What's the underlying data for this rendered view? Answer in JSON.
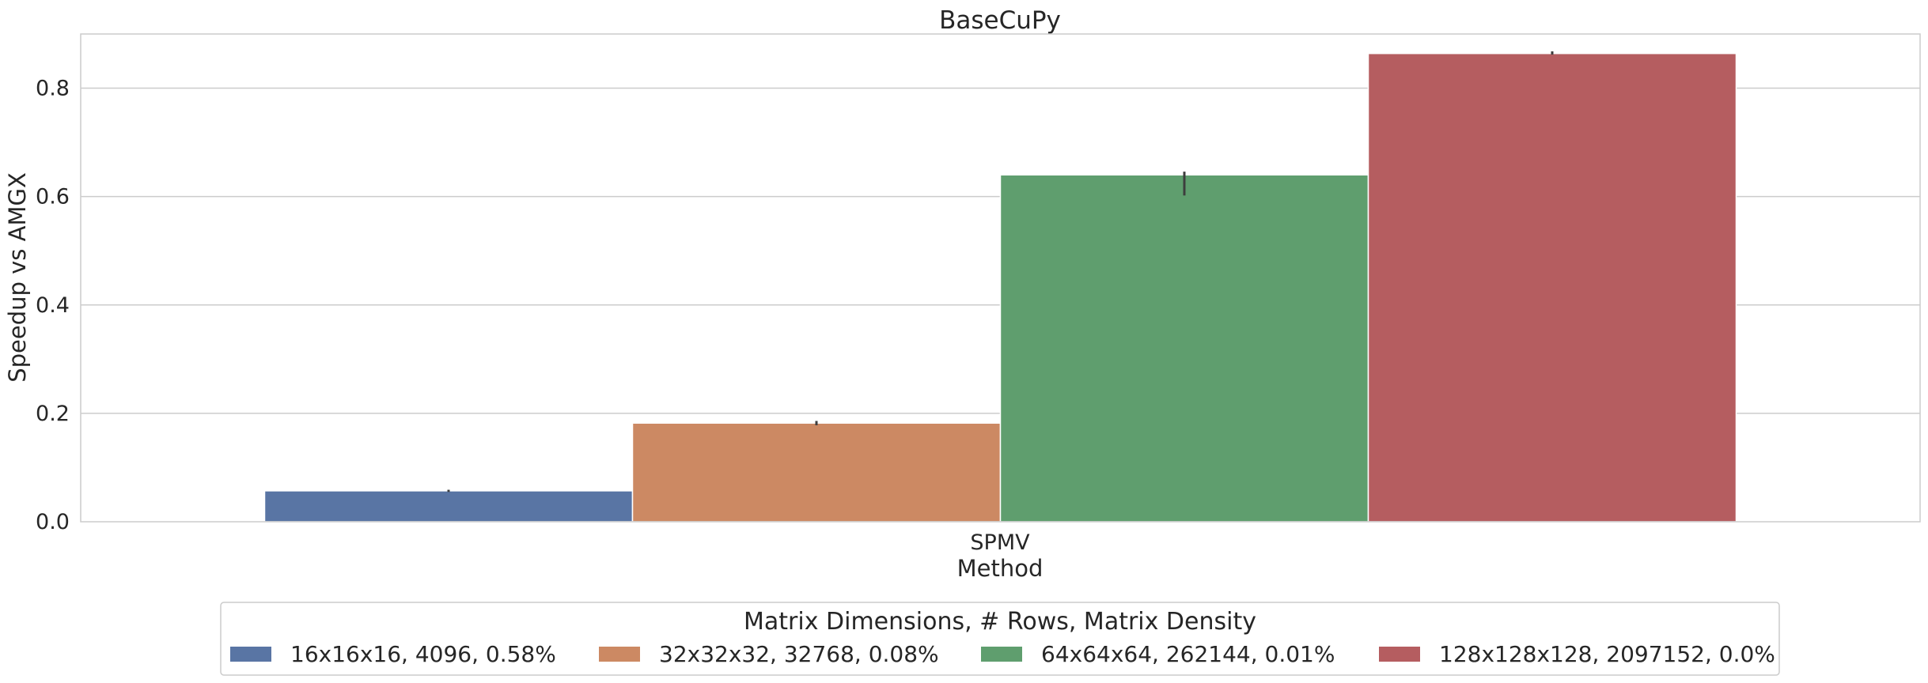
{
  "chart_data": {
    "type": "bar",
    "title": "BaseCuPy",
    "xlabel": "Method",
    "ylabel": "Speedup vs AMGX",
    "categories": [
      "SPMV"
    ],
    "ylim": [
      0,
      0.9
    ],
    "yticks": [
      0.0,
      0.2,
      0.4,
      0.6,
      0.8
    ],
    "ytick_labels": [
      "0.0",
      "0.2",
      "0.4",
      "0.6",
      "0.8"
    ],
    "grid": "horizontal",
    "legend": {
      "title": "Matrix Dimensions, # Rows, Matrix Density",
      "placement": "bottom-center"
    },
    "series": [
      {
        "name": "16x16x16, 4096, 0.58%",
        "color": "#5975a4",
        "values": [
          0.057
        ],
        "err": [
          [
            0.055,
            0.059
          ]
        ]
      },
      {
        "name": "32x32x32, 32768, 0.08%",
        "color": "#cc8963",
        "values": [
          0.182
        ],
        "err": [
          [
            0.178,
            0.186
          ]
        ]
      },
      {
        "name": "64x64x64, 262144, 0.01%",
        "color": "#5f9e6e",
        "values": [
          0.64
        ],
        "err": [
          [
            0.602,
            0.646
          ]
        ]
      },
      {
        "name": "128x128x128, 2097152, 0.0%",
        "color": "#b55d60",
        "values": [
          0.864
        ],
        "err": [
          [
            0.862,
            0.868
          ]
        ]
      }
    ]
  }
}
